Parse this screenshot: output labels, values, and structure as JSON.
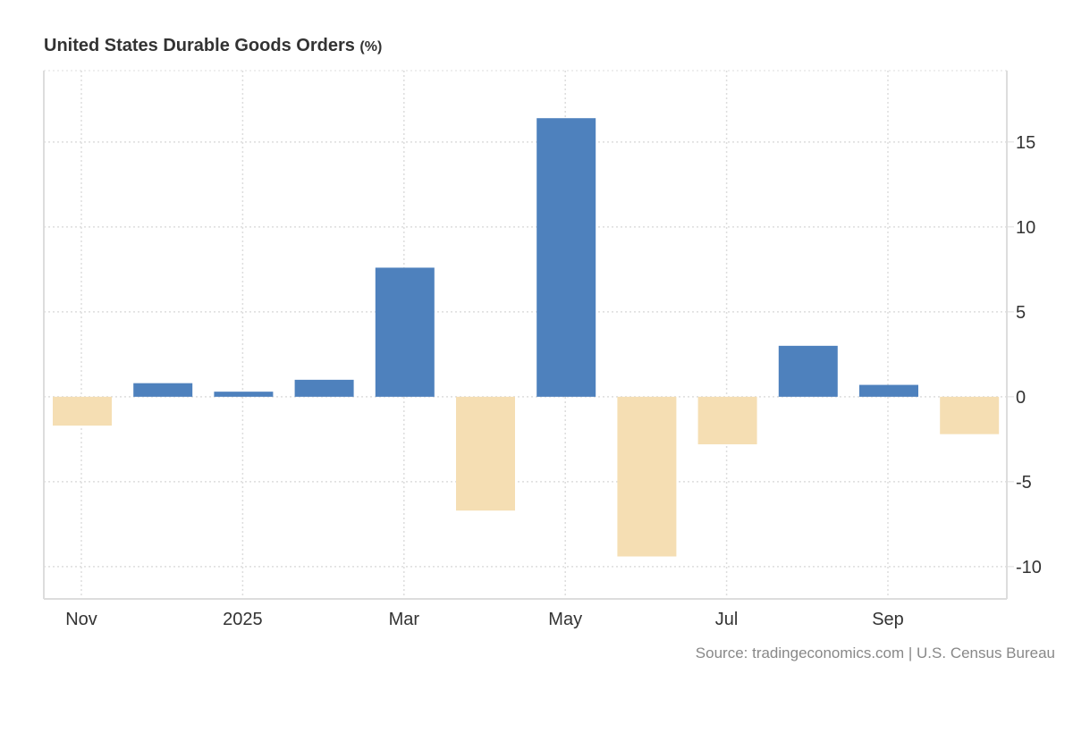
{
  "chart_data": {
    "type": "bar",
    "title": "United States Durable Goods Orders",
    "unit": "(%)",
    "categories": [
      "Nov 2024",
      "Dec 2024",
      "Jan 2025",
      "Feb 2025",
      "Mar 2025",
      "Apr 2025",
      "May 2025",
      "Jun 2025",
      "Jul 2025",
      "Aug 2025",
      "Sep 2025",
      "Oct 2025"
    ],
    "values": [
      -1.7,
      0.8,
      0.3,
      1.0,
      7.6,
      -6.7,
      16.4,
      -9.4,
      -2.8,
      3.0,
      0.7,
      -2.2
    ],
    "x_tick_labels": [
      {
        "label": "Nov",
        "index": 0
      },
      {
        "label": "2025",
        "index": 2
      },
      {
        "label": "Mar",
        "index": 4
      },
      {
        "label": "May",
        "index": 6
      },
      {
        "label": "Jul",
        "index": 8
      },
      {
        "label": "Sep",
        "index": 10
      }
    ],
    "y_ticks": [
      15,
      10,
      5,
      0,
      -5,
      -10
    ],
    "ylim": [
      -11.9,
      19.2
    ],
    "y_axis_side": "right",
    "grid": true,
    "colors": {
      "positive": "#4e81bd",
      "negative": "#f5deb3"
    },
    "source": "Source: tradingeconomics.com | U.S. Census Bureau"
  }
}
